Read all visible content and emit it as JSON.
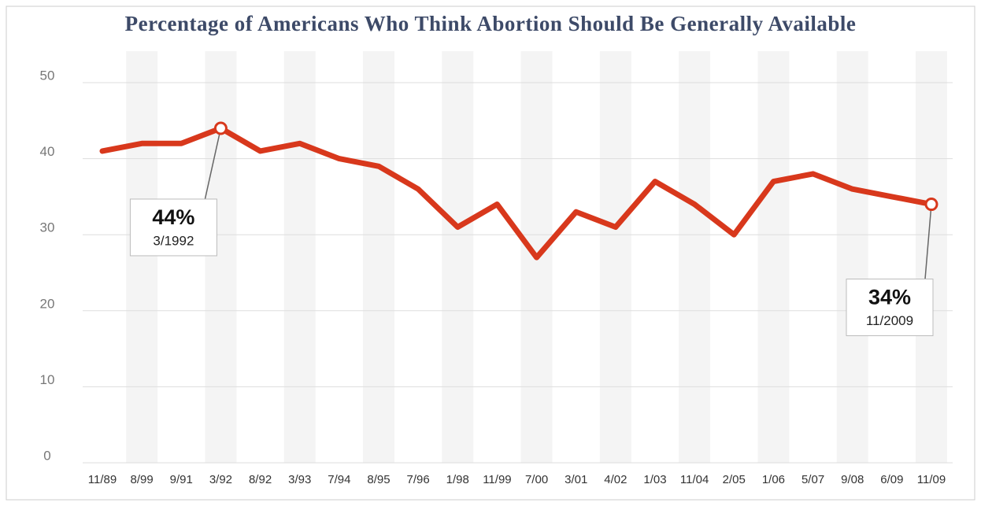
{
  "chart_data": {
    "type": "line",
    "title": "Percentage of Americans Who Think Abortion Should Be Generally Available",
    "categories": [
      "11/89",
      "8/99",
      "9/91",
      "3/92",
      "8/92",
      "3/93",
      "7/94",
      "8/95",
      "7/96",
      "1/98",
      "11/99",
      "7/00",
      "3/01",
      "4/02",
      "1/03",
      "11/04",
      "2/05",
      "1/06",
      "5/07",
      "9/08",
      "6/09",
      "11/09"
    ],
    "values": [
      41,
      42,
      42,
      44,
      41,
      42,
      40,
      39,
      36,
      31,
      34,
      27,
      33,
      31,
      37,
      34,
      30,
      37,
      38,
      36,
      35,
      34
    ],
    "value_labels": [
      null,
      null,
      null,
      "44%",
      null,
      null,
      null,
      null,
      null,
      null,
      null,
      null,
      null,
      null,
      null,
      null,
      null,
      null,
      null,
      null,
      null,
      "34%"
    ],
    "annotations": [
      "3/1992",
      "11/2009"
    ],
    "color": "#d8381c",
    "ylim": [
      0,
      50
    ],
    "yticks": [
      0,
      10,
      20,
      30,
      40,
      50
    ],
    "grid": true
  }
}
